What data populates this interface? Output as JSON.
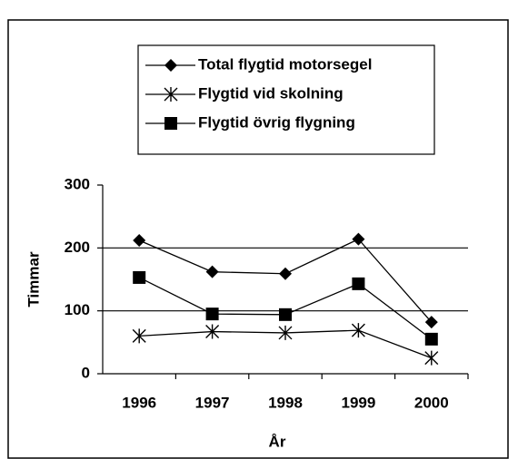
{
  "chart_data": {
    "type": "line",
    "categories": [
      "1996",
      "1997",
      "1998",
      "1999",
      "2000"
    ],
    "series": [
      {
        "name": "Total flygtid motorsegel",
        "color": "#000000",
        "marker": "diamond",
        "values": [
          212,
          162,
          159,
          214,
          82
        ]
      },
      {
        "name": "Flygtid vid skolning",
        "color": "#000000",
        "marker": "asterisk",
        "values": [
          60,
          67,
          65,
          69,
          25
        ]
      },
      {
        "name": "Flygtid övrig flygning",
        "color": "#000000",
        "marker": "square",
        "values": [
          153,
          95,
          94,
          143,
          55
        ]
      }
    ],
    "ylim": [
      0,
      300
    ],
    "yticks": [
      0,
      100,
      200,
      300
    ],
    "x_label": "År",
    "y_label": "Timmar",
    "grid": true
  }
}
